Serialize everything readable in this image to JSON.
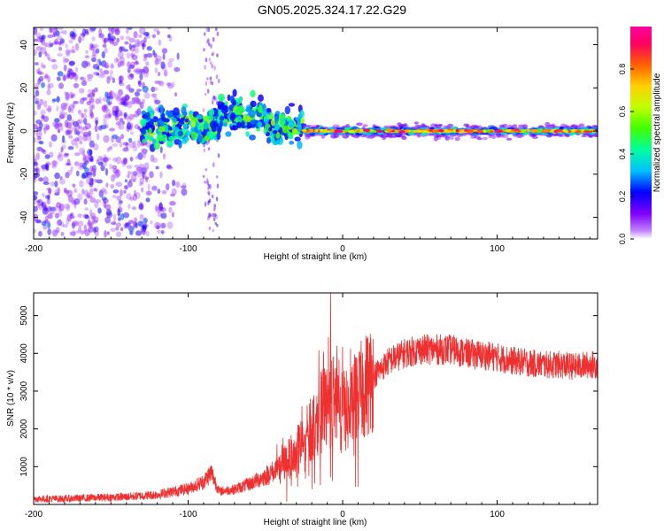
{
  "title": "GN05.2025.324.17.22.G29",
  "chart_data": [
    {
      "type": "heatmap",
      "id": "spectrogram",
      "xlabel": "Height of straight line (km)",
      "ylabel": "Frequency (Hz)",
      "xlim": [
        -200,
        165
      ],
      "ylim": [
        -50,
        48
      ],
      "xticks": [
        -200,
        -100,
        0,
        100
      ],
      "xtick_labels": [
        "-200",
        "-100",
        "0",
        "100"
      ],
      "yticks": [
        -40,
        -20,
        0,
        20,
        40
      ],
      "ytick_labels": [
        "-40",
        "-20",
        "0",
        "20",
        "40"
      ],
      "colorbar": {
        "label": "Normalized spectral amplitude",
        "range": [
          0,
          1
        ],
        "ticks": [
          0.0,
          0.2,
          0.4,
          0.6,
          0.8
        ],
        "tick_labels": [
          "0.0",
          "0.2",
          "0.4",
          "0.6",
          "0.8"
        ],
        "colors": [
          "#ffffff",
          "#c080ff",
          "#8000ff",
          "#0000ff",
          "#00c0ff",
          "#00ffa0",
          "#40ff00",
          "#c0ff00",
          "#ffd000",
          "#ff6000",
          "#ff0060",
          "#ff00a0"
        ]
      },
      "features": [
        {
          "name": "scatter_cloud",
          "x_range": [
            -200,
            -100
          ],
          "freq_spread": 48,
          "amplitude": [
            0.05,
            0.3
          ]
        },
        {
          "name": "vertical_band",
          "x_range": [
            -90,
            -80
          ],
          "freq_spread": 48,
          "amplitude": [
            0.05,
            0.2
          ]
        },
        {
          "name": "blob_region",
          "x_range": [
            -130,
            -25
          ],
          "freq_center": 2,
          "freq_spread": 12,
          "amplitude": [
            0.2,
            0.65
          ]
        },
        {
          "name": "carrier_line",
          "x_range": [
            -25,
            165
          ],
          "freq_center": 0,
          "freq_spread": 3,
          "amplitude": [
            0.5,
            1.0
          ]
        }
      ]
    },
    {
      "type": "line",
      "id": "snr",
      "xlabel": "Height of straight line (km)",
      "ylabel": "SNR (10 * v/v)",
      "xlim": [
        -200,
        165
      ],
      "ylim": [
        0,
        5600
      ],
      "xticks": [
        -200,
        -100,
        0,
        100
      ],
      "xtick_labels": [
        "-200",
        "-100",
        "0",
        "100"
      ],
      "yticks": [
        1000,
        2000,
        3000,
        4000,
        5000
      ],
      "ytick_labels": [
        "1000",
        "2000",
        "3000",
        "4000",
        "5000"
      ],
      "color": "#ee3030",
      "x": [
        -200,
        -180,
        -160,
        -140,
        -120,
        -100,
        -90,
        -85,
        -80,
        -70,
        -60,
        -50,
        -40,
        -30,
        -20,
        -15,
        -10,
        -5,
        0,
        5,
        10,
        20,
        30,
        40,
        50,
        60,
        70,
        80,
        90,
        100,
        110,
        120,
        130,
        140,
        150,
        160,
        165
      ],
      "y": [
        150,
        150,
        180,
        200,
        260,
        420,
        600,
        850,
        350,
        400,
        550,
        750,
        1000,
        1400,
        2000,
        2400,
        2600,
        2800,
        2500,
        2400,
        2900,
        3400,
        3800,
        4000,
        4100,
        4100,
        4100,
        4000,
        3950,
        3900,
        3800,
        3750,
        3700,
        3700,
        3650,
        3700,
        3700
      ],
      "spikes": [
        {
          "x": -8,
          "y": 5600
        },
        {
          "x": -4,
          "y": 4200
        }
      ]
    }
  ]
}
